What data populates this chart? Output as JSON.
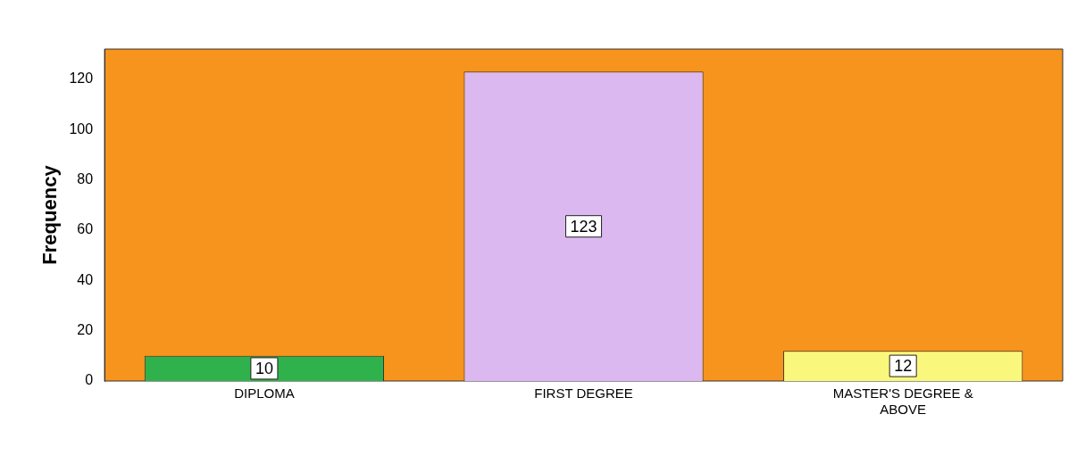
{
  "chart_data": {
    "type": "bar",
    "ylabel": "Frequency",
    "categories": [
      "DIPLOMA",
      "FIRST DEGREE",
      "MASTER'S DEGREE & ABOVE"
    ],
    "values": [
      10,
      123,
      12
    ],
    "colors": [
      "#2fb24c",
      "#dbb8f0",
      "#f9f77c"
    ],
    "ylim": [
      0,
      132
    ],
    "yticks": [
      0,
      20,
      40,
      60,
      80,
      100,
      120
    ],
    "grid": false,
    "legend": false,
    "data_labels": true
  }
}
